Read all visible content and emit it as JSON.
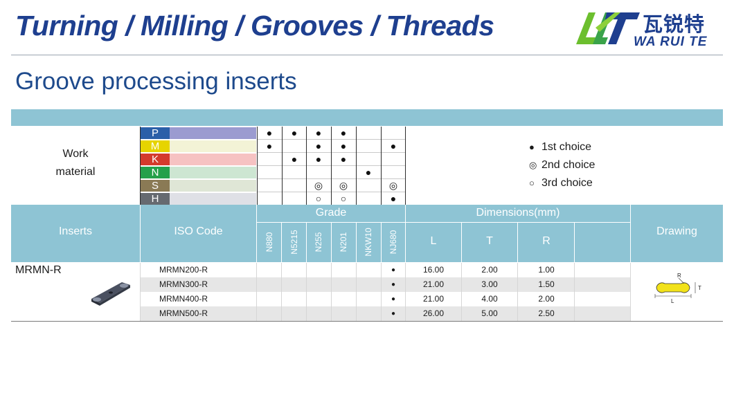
{
  "header": {
    "title": "Turning / Milling / Grooves / Threads",
    "logo_cn": "瓦锐特",
    "logo_en": "WA RUI TE"
  },
  "section_title": "Groove processing inserts",
  "work_material": {
    "label_line1": "Work",
    "label_line2": "material",
    "materials": [
      {
        "code": "P",
        "code_color": "#2b5fa8",
        "bar_color": "#9b9bd0"
      },
      {
        "code": "M",
        "code_color": "#e6d400",
        "bar_color": "#f3f3d6"
      },
      {
        "code": "K",
        "code_color": "#d43a2c",
        "bar_color": "#f6c2c2"
      },
      {
        "code": "N",
        "code_color": "#24a04a",
        "bar_color": "#cde6d2"
      },
      {
        "code": "S",
        "code_color": "#8a7a55",
        "bar_color": "#dfe6d6"
      },
      {
        "code": "H",
        "code_color": "#666a70",
        "bar_color": "#dfe0e6"
      }
    ],
    "choices": [
      [
        "●",
        "●",
        "●",
        "●",
        "",
        ""
      ],
      [
        "●",
        "",
        "●",
        "●",
        "",
        "●"
      ],
      [
        "",
        "●",
        "●",
        "●",
        "",
        ""
      ],
      [
        "",
        "",
        "",
        "",
        "●",
        ""
      ],
      [
        "",
        "",
        "◎",
        "◎",
        "",
        "◎"
      ],
      [
        "",
        "",
        "○",
        "○",
        "",
        "●"
      ]
    ]
  },
  "legend": [
    {
      "symbol": "●",
      "label": "1st choice"
    },
    {
      "symbol": "◎",
      "label": "2nd choice"
    },
    {
      "symbol": "○",
      "label": "3rd choice"
    }
  ],
  "table": {
    "headers": {
      "inserts": "Inserts",
      "iso_code": "ISO Code",
      "grade": "Grade",
      "dimensions": "Dimensions(mm)",
      "drawing": "Drawing",
      "dim_cols": [
        "L",
        "T",
        "R"
      ]
    },
    "grades": [
      "N880",
      "N5215",
      "N255",
      "N201",
      "NKW10",
      "NJ680"
    ],
    "insert_family": "MRMN-R",
    "rows": [
      {
        "iso": "MRMN200-R",
        "marks": [
          "",
          "",
          "",
          "",
          "",
          "●"
        ],
        "L": "16.00",
        "T": "2.00",
        "R": "1.00"
      },
      {
        "iso": "MRMN300-R",
        "marks": [
          "",
          "",
          "",
          "",
          "",
          "●"
        ],
        "L": "21.00",
        "T": "3.00",
        "R": "1.50"
      },
      {
        "iso": "MRMN400-R",
        "marks": [
          "",
          "",
          "",
          "",
          "",
          "●"
        ],
        "L": "21.00",
        "T": "4.00",
        "R": "2.00"
      },
      {
        "iso": "MRMN500-R",
        "marks": [
          "",
          "",
          "",
          "",
          "",
          "●"
        ],
        "L": "26.00",
        "T": "5.00",
        "R": "2.50"
      }
    ],
    "drawing_labels": {
      "r": "R",
      "t": "T",
      "l": "L"
    }
  }
}
